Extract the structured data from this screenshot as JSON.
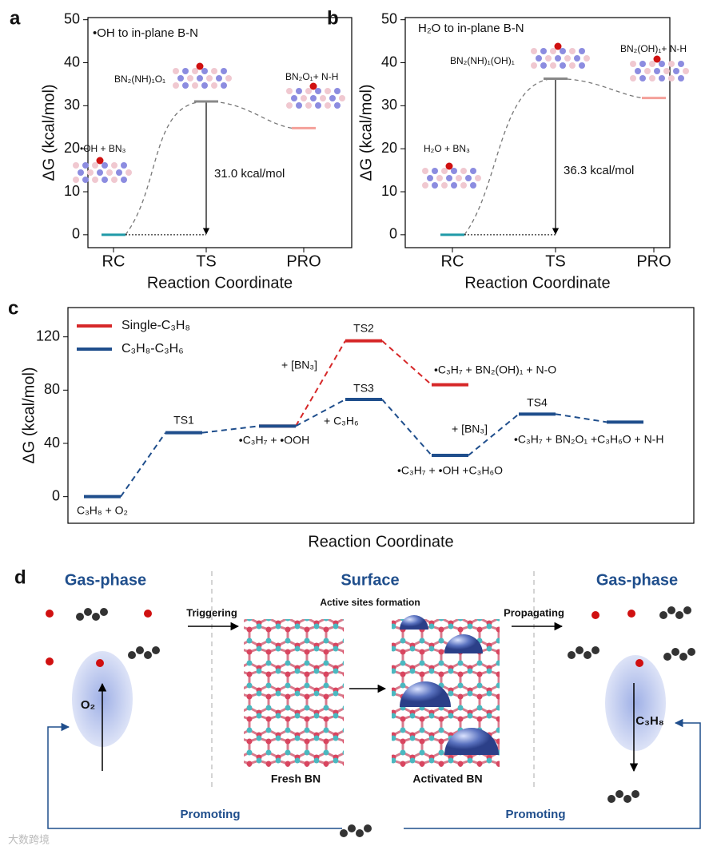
{
  "chart_data": [
    {
      "type": "energy_profile",
      "panel_label": "a",
      "annotation_title": "•OH to in-plane B-N",
      "categories": [
        "RC",
        "TS",
        "PRO"
      ],
      "values": [
        0,
        31.0,
        24.8
      ],
      "colors": [
        "#1f9aa8",
        "#888888",
        "#f4a09a"
      ],
      "species": [
        "•OH + BN₃",
        "BN₂(NH)₁O₁",
        "BN₂O₁+ N-H"
      ],
      "barrier_label": "31.0 kcal/mol",
      "xlabel": "Reaction Coordinate",
      "ylabel": "ΔG (kcal/mol)",
      "ylim": [
        -3,
        50.5
      ],
      "yticks": [
        0,
        10,
        20,
        30,
        40,
        50
      ]
    },
    {
      "type": "energy_profile",
      "panel_label": "b",
      "annotation_title": "H₂O to in-plane B-N",
      "categories": [
        "RC",
        "TS",
        "PRO"
      ],
      "values": [
        0,
        36.3,
        31.8
      ],
      "colors": [
        "#1f9aa8",
        "#888888",
        "#f4a09a"
      ],
      "species": [
        "H₂O + BN₃",
        "BN₂(NH)₁(OH)₁",
        "BN₂(OH)₁+ N-H"
      ],
      "barrier_label": "36.3 kcal/mol",
      "xlabel": "Reaction Coordinate",
      "ylabel": "ΔG (kcal/mol)",
      "ylim": [
        -3,
        50.5
      ],
      "yticks": [
        0,
        10,
        20,
        30,
        40,
        50
      ]
    },
    {
      "type": "energy_levels",
      "panel_label": "c",
      "series": [
        {
          "name": "Single-C₃H₈",
          "color": "#d62728",
          "values": [
            null,
            null,
            53,
            117,
            84,
            null,
            null
          ]
        },
        {
          "name": "C₃H₈-C₃H₆",
          "color": "#1f4e8c",
          "values": [
            0,
            48,
            53,
            73,
            31,
            62,
            56
          ]
        }
      ],
      "annotations": [
        "TS1",
        "TS2",
        "TS3",
        "TS4",
        "+ [BN₃]",
        "+ C₃H₆",
        "+ [BN₃]",
        "C₃H₈ + O₂",
        "•C₃H₇ + •OOH",
        "•C₃H₇ + BN₂(OH)₁ + N-O",
        "•C₃H₇ + •OH +C₃H₆O",
        "•C₃H₇ + BN₂O₁ +C₃H₆O + N-H"
      ],
      "xlabel": "Reaction Coordinate",
      "ylabel": "ΔG (kcal/mol)",
      "ylim": [
        -20,
        142
      ],
      "yticks": [
        0,
        40,
        80,
        120
      ]
    }
  ],
  "diagram": {
    "panel_label": "d",
    "left_title": "Gas-phase",
    "center_title": "Surface",
    "right_title": "Gas-phase",
    "active_sites": "Active sites formation",
    "triggering": "Triggering",
    "propagating": "Propagating",
    "o2": "O₂",
    "c3h8": "C₃H₈",
    "fresh": "Fresh BN",
    "activated": "Activated BN",
    "promoting_left": "Promoting",
    "promoting_right": "Promoting"
  },
  "watermark": "大数跨境"
}
